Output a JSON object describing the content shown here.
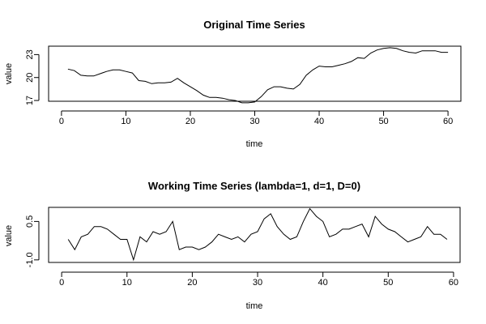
{
  "chart_data": [
    {
      "type": "line",
      "title": "Original Time Series",
      "xlabel": "time",
      "ylabel": "value",
      "xlim": [
        -2,
        62
      ],
      "ylim": [
        16.9,
        24.1
      ],
      "xticks": [
        0,
        10,
        20,
        30,
        40,
        50,
        60
      ],
      "yticks": [
        17,
        20,
        23
      ],
      "grid": false,
      "series": [
        {
          "x": [
            1,
            2,
            3,
            4,
            5,
            6,
            7,
            8,
            9,
            10,
            11,
            12,
            13,
            14,
            15,
            16,
            17,
            18,
            19,
            20,
            21,
            22,
            23,
            24,
            25,
            26,
            27,
            28,
            29,
            30,
            31,
            32,
            33,
            34,
            35,
            36,
            37,
            38,
            39,
            40,
            41,
            42,
            43,
            44,
            45,
            46,
            47,
            48,
            49,
            50,
            51,
            52,
            53,
            54,
            55,
            56,
            57,
            58,
            59,
            60
          ],
          "values": [
            21.1,
            20.9,
            20.3,
            20.2,
            20.2,
            20.5,
            20.8,
            21.0,
            21.0,
            20.8,
            20.6,
            19.6,
            19.5,
            19.2,
            19.3,
            19.3,
            19.4,
            19.9,
            19.3,
            18.8,
            18.3,
            17.7,
            17.4,
            17.4,
            17.3,
            17.1,
            17.0,
            16.7,
            16.7,
            16.8,
            17.5,
            18.4,
            18.8,
            18.8,
            18.6,
            18.5,
            19.1,
            20.3,
            21.0,
            21.5,
            21.4,
            21.4,
            21.6,
            21.8,
            22.1,
            22.6,
            22.5,
            23.2,
            23.6,
            23.8,
            23.9,
            23.8,
            23.5,
            23.3,
            23.2,
            23.5,
            23.5,
            23.5,
            23.3,
            23.3
          ]
        }
      ]
    },
    {
      "type": "line",
      "title": "Working Time Series (lambda=1, d=1, D=0)",
      "xlabel": "time",
      "ylabel": "value",
      "xlim": [
        -2,
        61
      ],
      "ylim": [
        -1.1,
        1.05
      ],
      "xticks": [
        0,
        10,
        20,
        30,
        40,
        50,
        60
      ],
      "yticks": [
        -1.0,
        0.5
      ],
      "grid": false,
      "series": [
        {
          "x": [
            1,
            2,
            3,
            4,
            5,
            6,
            7,
            8,
            9,
            10,
            11,
            12,
            13,
            14,
            15,
            16,
            17,
            18,
            19,
            20,
            21,
            22,
            23,
            24,
            25,
            26,
            27,
            28,
            29,
            30,
            31,
            32,
            33,
            34,
            35,
            36,
            37,
            38,
            39,
            40,
            41,
            42,
            43,
            44,
            45,
            46,
            47,
            48,
            49,
            50,
            51,
            52,
            53,
            54,
            55,
            56,
            57,
            58,
            59
          ],
          "values": [
            -0.2,
            -0.6,
            -0.1,
            0.0,
            0.3,
            0.3,
            0.2,
            0.0,
            -0.2,
            -0.2,
            -1.0,
            -0.1,
            -0.3,
            0.1,
            0.0,
            0.1,
            0.5,
            -0.6,
            -0.5,
            -0.5,
            -0.6,
            -0.5,
            -0.3,
            0.0,
            -0.1,
            -0.2,
            -0.1,
            -0.3,
            0.0,
            0.1,
            0.6,
            0.8,
            0.3,
            0.0,
            -0.2,
            -0.1,
            0.5,
            1.0,
            0.7,
            0.5,
            -0.1,
            0.0,
            0.2,
            0.2,
            0.3,
            0.4,
            -0.1,
            0.7,
            0.4,
            0.2,
            0.1,
            -0.1,
            -0.3,
            -0.2,
            -0.1,
            0.3,
            0.0,
            0.0,
            -0.2
          ]
        }
      ]
    }
  ]
}
